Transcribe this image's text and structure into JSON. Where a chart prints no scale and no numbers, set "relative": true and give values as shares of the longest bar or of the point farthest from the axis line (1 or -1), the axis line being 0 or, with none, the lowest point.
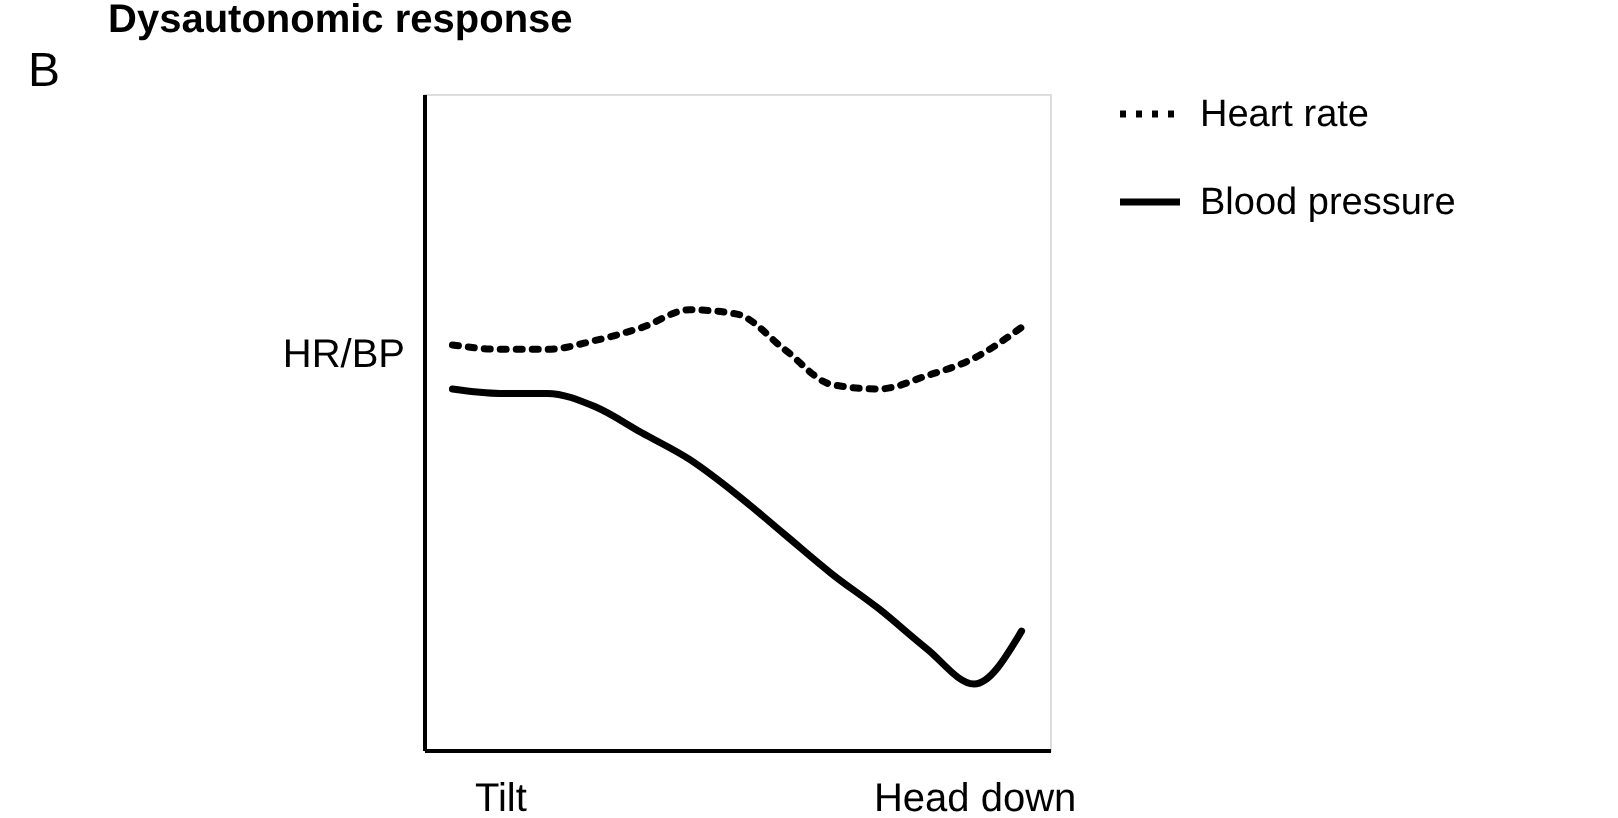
{
  "chart_data": {
    "type": "line",
    "title": "Dysautonomic response",
    "annotations": [
      "B"
    ],
    "ylabel": "HR/BP",
    "relative": true,
    "legend": "top right",
    "grid": false,
    "categories": [
      null,
      "Tilt",
      null,
      null,
      null,
      null,
      null,
      null,
      null,
      null,
      null,
      "Head down",
      null
    ],
    "series": [
      {
        "name": "Heart rate",
        "color": "#000000",
        "line_style": "dotted",
        "values": [
          0.92,
          0.91,
          0.91,
          0.93,
          0.96,
          1.0,
          0.99,
          0.91,
          0.83,
          0.82,
          0.85,
          0.89,
          0.96
        ]
      },
      {
        "name": "Blood pressure",
        "color": "#000000",
        "line_style": "solid",
        "values": [
          0.82,
          0.81,
          0.81,
          0.78,
          0.72,
          0.66,
          0.58,
          0.49,
          0.4,
          0.32,
          0.23,
          0.15,
          0.27
        ]
      }
    ]
  }
}
